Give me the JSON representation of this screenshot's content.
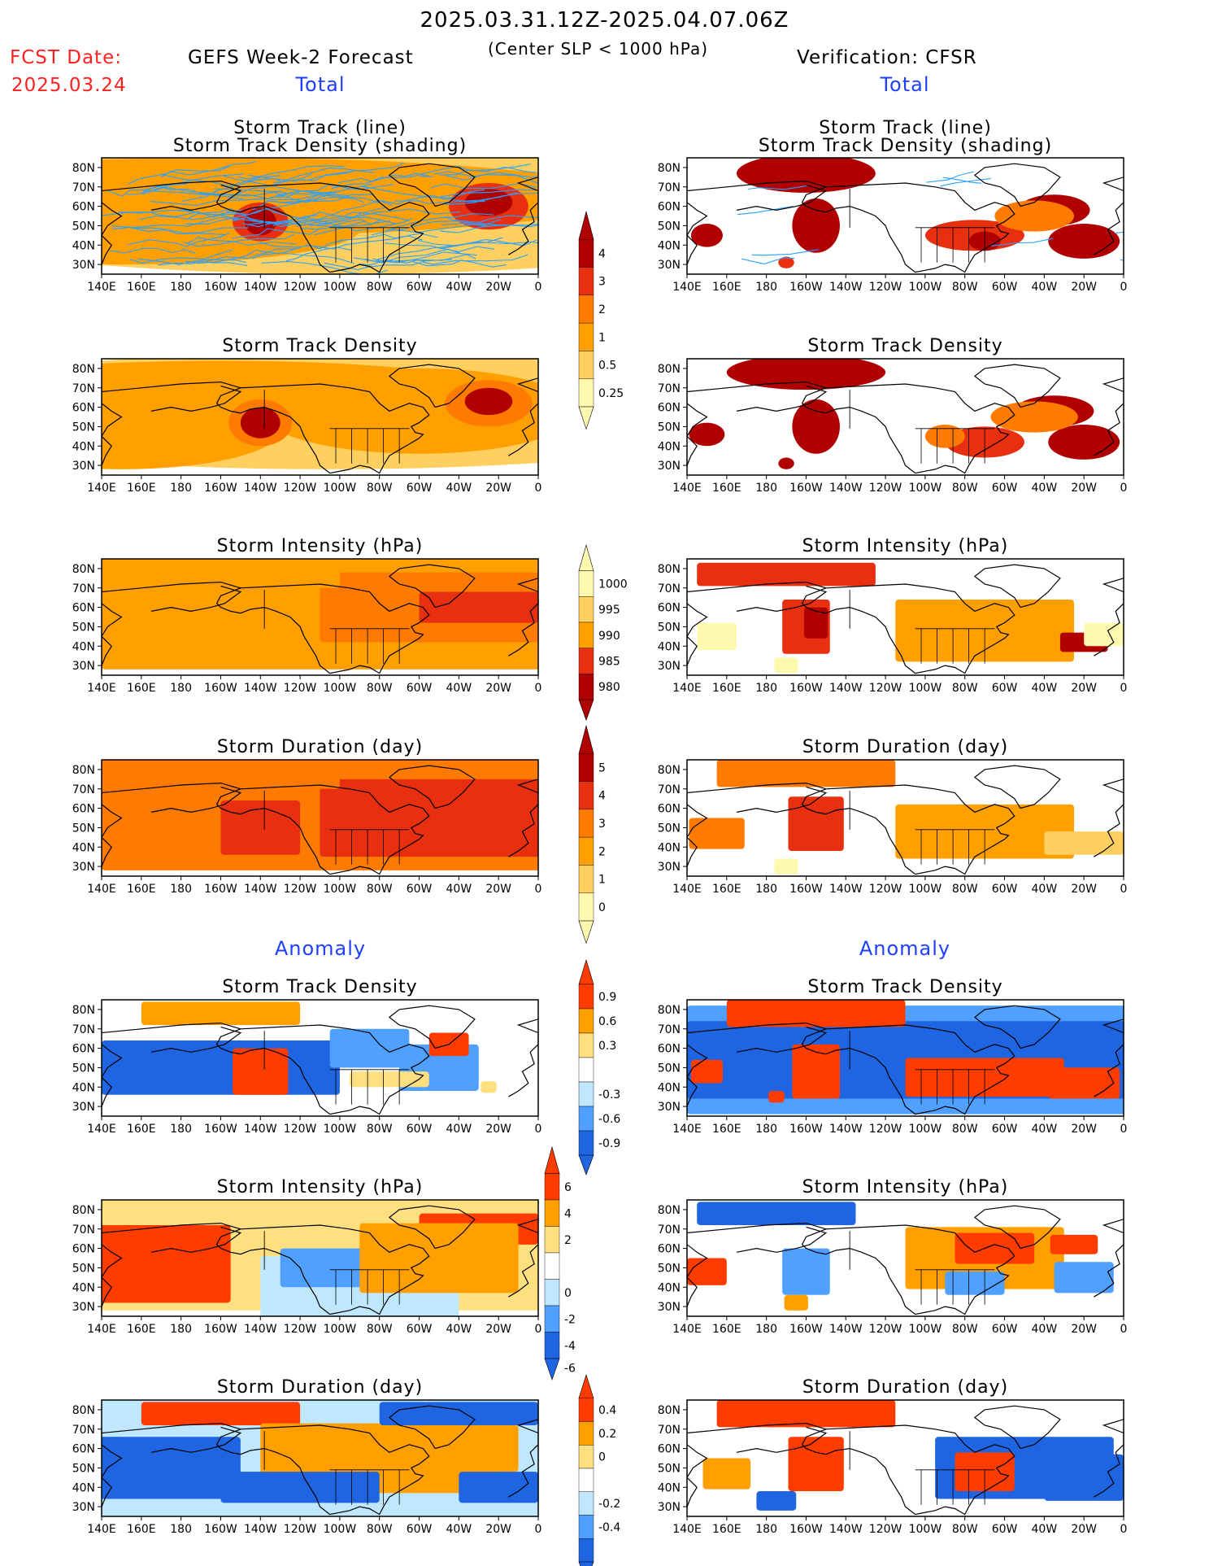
{
  "header": {
    "date_range": "2025.03.31.12Z-2025.04.07.06Z",
    "criterion": "(Center SLP < 1000 hPa)",
    "fcst_date_label": "FCST Date:",
    "fcst_date_value": "2025.03.24",
    "left_title": "GEFS Week-2 Forecast",
    "right_title": "Verification: CFSR",
    "section_total": "Total",
    "section_anomaly": "Anomaly"
  },
  "colors": {
    "fcst_date": "#ff2020",
    "section_label": "#1f3fff",
    "total_scale": [
      "#fff9b0",
      "#ffd060",
      "#ffa000",
      "#ff7a00",
      "#e83010",
      "#b00000"
    ],
    "anomaly_scale": [
      "#1f64e0",
      "#4fa0ff",
      "#bfe8ff",
      "#ffffff",
      "#ffe080",
      "#ffa000",
      "#ff3c00"
    ],
    "track_line": "#2aa0ff",
    "coastline": "#000000"
  },
  "panels": [
    {
      "section": "total",
      "col": "fcst",
      "title1": "Storm Track (line)",
      "title2": "Storm Track Density (shading)",
      "tracks": true,
      "field": "total_fcst_track"
    },
    {
      "section": "total",
      "col": "verif",
      "title1": "Storm Track (line)",
      "title2": "Storm Track Density (shading)",
      "tracks": true,
      "field": "total_verif_track"
    },
    {
      "section": "total",
      "col": "fcst",
      "title1": "Storm Track Density",
      "field": "total_fcst_density"
    },
    {
      "section": "total",
      "col": "verif",
      "title1": "Storm Track Density",
      "field": "total_verif_density"
    },
    {
      "section": "total",
      "col": "fcst",
      "title1": "Storm Intensity (hPa)",
      "field": "total_fcst_intensity"
    },
    {
      "section": "total",
      "col": "verif",
      "title1": "Storm Intensity (hPa)",
      "field": "total_verif_intensity"
    },
    {
      "section": "total",
      "col": "fcst",
      "title1": "Storm Duration (day)",
      "field": "total_fcst_duration"
    },
    {
      "section": "total",
      "col": "verif",
      "title1": "Storm Duration (day)",
      "field": "total_verif_duration"
    },
    {
      "section": "anomaly",
      "col": "fcst",
      "title1": "Storm Track Density",
      "field": "anom_fcst_density"
    },
    {
      "section": "anomaly",
      "col": "verif",
      "title1": "Storm Track Density",
      "field": "anom_verif_density"
    },
    {
      "section": "anomaly",
      "col": "fcst",
      "title1": "Storm Intensity (hPa)",
      "field": "anom_fcst_intensity"
    },
    {
      "section": "anomaly",
      "col": "verif",
      "title1": "Storm Intensity (hPa)",
      "field": "anom_verif_intensity"
    },
    {
      "section": "anomaly",
      "col": "fcst",
      "title1": "Storm Duration (day)",
      "field": "anom_fcst_duration"
    },
    {
      "section": "anomaly",
      "col": "verif",
      "title1": "Storm Duration (day)",
      "field": "anom_verif_duration"
    }
  ],
  "lat_ticks": [
    "80N",
    "70N",
    "60N",
    "50N",
    "40N",
    "30N"
  ],
  "lon_ticks": [
    "140E",
    "160E",
    "180",
    "160W",
    "140W",
    "120W",
    "100W",
    "80W",
    "60W",
    "40W",
    "20W",
    "0"
  ],
  "colorbars": [
    {
      "name": "total-density-colorbar",
      "kind": "total",
      "labels": [
        "4",
        "3",
        "2",
        "1",
        "0.5",
        "0.25"
      ]
    },
    {
      "name": "total-intensity-colorbar",
      "kind": "intensity",
      "labels": [
        "1000",
        "995",
        "990",
        "985",
        "980"
      ]
    },
    {
      "name": "total-duration-colorbar",
      "kind": "total",
      "labels": [
        "5",
        "4",
        "3",
        "2",
        "1",
        "0"
      ]
    },
    {
      "name": "anomaly-density-colorbar",
      "kind": "anomaly",
      "labels": [
        "0.9",
        "0.6",
        "0.3",
        "-0.3",
        "-0.6",
        "-0.9"
      ]
    },
    {
      "name": "anomaly-intensity-colorbar",
      "kind": "anomaly",
      "labels": [
        "6",
        "4",
        "2",
        "0",
        "-2",
        "-4",
        "-6"
      ]
    },
    {
      "name": "anomaly-duration-colorbar",
      "kind": "anomaly",
      "labels": [
        "0.4",
        "0.2",
        "0",
        "-0.2",
        "-0.4"
      ]
    }
  ]
}
